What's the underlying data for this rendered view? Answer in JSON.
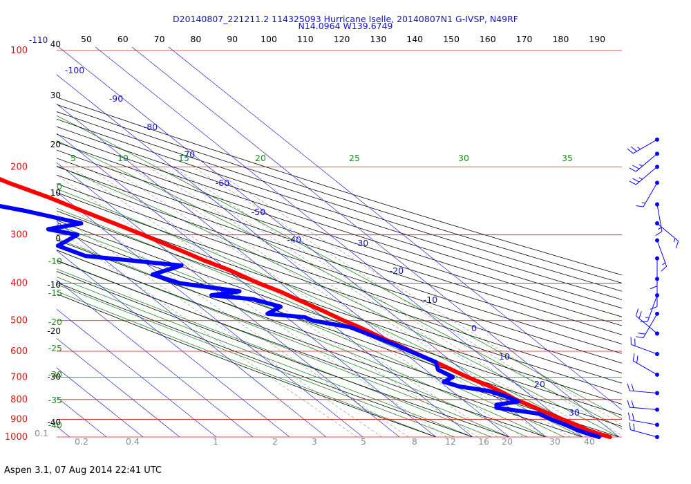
{
  "header": {
    "line1": "D20140807_221211.2 114325093 Hurricane Iselle, 20140807N1 G-IVSP, N49RF",
    "line2": "N14.0964 W139.6749"
  },
  "footer": "Aspen 3.1, 07 Aug 2014  22:41 UTC",
  "chart_data": {
    "type": "skew-t log-p diagram",
    "y_axis": {
      "quantity": "pressure (hPa)",
      "scale": "log",
      "range": [
        100,
        1000
      ],
      "tick_labels": [
        "100",
        "200",
        "300",
        "400",
        "500",
        "600",
        "700",
        "800",
        "900",
        "1000"
      ]
    },
    "height_labels_km": [
      "-110",
      "40",
      "30",
      "20",
      "10",
      "0",
      "-10",
      "-20",
      "-30",
      "-40"
    ],
    "top_axis_labels": [
      "50",
      "60",
      "70",
      "80",
      "90",
      "100",
      "110",
      "120",
      "130",
      "140",
      "150",
      "160",
      "170",
      "180",
      "190"
    ],
    "isotherm_labels_C": [
      "-100",
      "-90",
      "-80",
      "-70",
      "-60",
      "-50",
      "-40",
      "-30",
      "-20",
      "-10",
      "0",
      "10",
      "20",
      "30"
    ],
    "dry_adiabat_labels_C": [
      "0",
      "-5",
      "-10",
      "-15",
      "-20",
      "-25",
      "-30",
      "-35",
      "-40"
    ],
    "moist_adiabat_labels_C": [
      "5",
      "10",
      "15",
      "20",
      "25",
      "30",
      "35"
    ],
    "mixing_ratio_labels": [
      "0.1",
      "0.2",
      "0.4",
      "1",
      "2",
      "3",
      "5",
      "8",
      "12",
      "16",
      "20",
      "30",
      "40"
    ],
    "series": [
      {
        "role": "temperature",
        "color": "#ff0000",
        "points": [
          {
            "p": 1000,
            "t": 27.5
          },
          {
            "p": 980,
            "t": 25.5
          },
          {
            "p": 960,
            "t": 23.8
          },
          {
            "p": 930,
            "t": 22.4
          },
          {
            "p": 900,
            "t": 20.5
          },
          {
            "p": 860,
            "t": 18.2
          },
          {
            "p": 830,
            "t": 16.5
          },
          {
            "p": 800,
            "t": 14.5
          },
          {
            "p": 770,
            "t": 13.5
          },
          {
            "p": 740,
            "t": 12.0
          },
          {
            "p": 700,
            "t": 9.0
          },
          {
            "p": 650,
            "t": 6.0
          },
          {
            "p": 600,
            "t": 2.5
          },
          {
            "p": 560,
            "t": -0.5
          },
          {
            "p": 520,
            "t": -3.5
          },
          {
            "p": 500,
            "t": -5.5
          },
          {
            "p": 470,
            "t": -8.0
          },
          {
            "p": 440,
            "t": -11.0
          },
          {
            "p": 420,
            "t": -13.0
          },
          {
            "p": 400,
            "t": -16.0
          },
          {
            "p": 370,
            "t": -19.5
          },
          {
            "p": 350,
            "t": -23.0
          },
          {
            "p": 330,
            "t": -26.0
          },
          {
            "p": 300,
            "t": -31.0
          },
          {
            "p": 280,
            "t": -35.0
          },
          {
            "p": 260,
            "t": -39.5
          },
          {
            "p": 240,
            "t": -44.0
          },
          {
            "p": 220,
            "t": -50.0
          },
          {
            "p": 200,
            "t": -55.0
          },
          {
            "p": 185,
            "t": -59.0
          },
          {
            "p": 178,
            "t": -60.5
          }
        ],
        "isolated_points": [
          {
            "p": 160,
            "t": -56.0
          }
        ]
      },
      {
        "role": "dewpoint",
        "color": "#0000ff",
        "points": [
          {
            "p": 1000,
            "t": 24.5
          },
          {
            "p": 980,
            "t": 22.5
          },
          {
            "p": 960,
            "t": 21.0
          },
          {
            "p": 930,
            "t": 19.5
          },
          {
            "p": 900,
            "t": 17.5
          },
          {
            "p": 870,
            "t": 16.0
          },
          {
            "p": 840,
            "t": 6.5
          },
          {
            "p": 825,
            "t": 7.5
          },
          {
            "p": 810,
            "t": 14.5
          },
          {
            "p": 780,
            "t": 12.5
          },
          {
            "p": 760,
            "t": 10.0
          },
          {
            "p": 740,
            "t": 3.5
          },
          {
            "p": 720,
            "t": 1.0
          },
          {
            "p": 700,
            "t": 5.0
          },
          {
            "p": 670,
            "t": 3.5
          },
          {
            "p": 640,
            "t": 5.5
          },
          {
            "p": 610,
            "t": 3.0
          },
          {
            "p": 580,
            "t": 0.5
          },
          {
            "p": 550,
            "t": -2.5
          },
          {
            "p": 520,
            "t": -6.0
          },
          {
            "p": 500,
            "t": -14.0
          },
          {
            "p": 490,
            "t": -15.0
          },
          {
            "p": 480,
            "t": -24.0
          },
          {
            "p": 460,
            "t": -18.0
          },
          {
            "p": 440,
            "t": -23.0
          },
          {
            "p": 430,
            "t": -33.0
          },
          {
            "p": 420,
            "t": -24.0
          },
          {
            "p": 400,
            "t": -37.5
          },
          {
            "p": 380,
            "t": -42.0
          },
          {
            "p": 360,
            "t": -31.0
          },
          {
            "p": 340,
            "t": -54.0
          },
          {
            "p": 320,
            "t": -58.0
          },
          {
            "p": 300,
            "t": -49.0
          },
          {
            "p": 290,
            "t": -55.0
          },
          {
            "p": 280,
            "t": -44.0
          },
          {
            "p": 260,
            "t": -55.0
          },
          {
            "p": 240,
            "t": -70.0
          },
          {
            "p": 220,
            "t": -78.0
          },
          {
            "p": 210,
            "t": -77.0
          },
          {
            "p": 195,
            "t": -79.0
          }
        ]
      }
    ],
    "wind_barbs": [
      {
        "p": 170,
        "dir": 240,
        "spd": 25
      },
      {
        "p": 185,
        "dir": 230,
        "spd": 25
      },
      {
        "p": 200,
        "dir": 230,
        "spd": 25
      },
      {
        "p": 220,
        "dir": 210,
        "spd": 15
      },
      {
        "p": 250,
        "dir": 170,
        "spd": 15
      },
      {
        "p": 280,
        "dir": 130,
        "spd": 15
      },
      {
        "p": 310,
        "dir": 160,
        "spd": 15
      },
      {
        "p": 345,
        "dir": 180,
        "spd": 10
      },
      {
        "p": 390,
        "dir": 180,
        "spd": 10
      },
      {
        "p": 430,
        "dir": 200,
        "spd": 15
      },
      {
        "p": 480,
        "dir": 210,
        "spd": 20
      },
      {
        "p": 540,
        "dir": 310,
        "spd": 20
      },
      {
        "p": 610,
        "dir": 290,
        "spd": 20
      },
      {
        "p": 690,
        "dir": 300,
        "spd": 20
      },
      {
        "p": 770,
        "dir": 275,
        "spd": 20
      },
      {
        "p": 850,
        "dir": 275,
        "spd": 20
      },
      {
        "p": 930,
        "dir": 280,
        "spd": 20
      },
      {
        "p": 1000,
        "dir": 285,
        "spd": 20
      }
    ]
  }
}
